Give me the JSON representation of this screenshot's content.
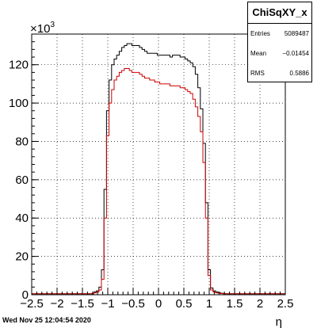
{
  "chart_data": {
    "type": "line",
    "title": "",
    "xlabel": "η",
    "ylabel": "",
    "y_multiplier": "×10",
    "y_multiplier_exponent": "3",
    "xlim": [
      -2.5,
      2.5
    ],
    "ylim": [
      0,
      136
    ],
    "x_ticks": [
      "−2.5",
      "−2",
      "−1.5",
      "−1",
      "−0.5",
      "0",
      "0.5",
      "1",
      "1.5",
      "2",
      "2.5"
    ],
    "y_ticks": [
      "0",
      "20",
      "40",
      "60",
      "80",
      "100",
      "120"
    ],
    "grid": true,
    "bin_width": 0.05,
    "series": [
      {
        "name": "",
        "color": "#000000",
        "style": "step",
        "x": [
          -1.25,
          -1.2,
          -1.15,
          -1.1,
          -1.05,
          -1.0,
          -0.95,
          -0.9,
          -0.85,
          -0.8,
          -0.75,
          -0.7,
          -0.65,
          -0.6,
          -0.55,
          -0.5,
          -0.45,
          -0.4,
          -0.35,
          -0.3,
          -0.25,
          -0.2,
          -0.15,
          -0.1,
          -0.05,
          0.0,
          0.05,
          0.1,
          0.15,
          0.2,
          0.25,
          0.3,
          0.35,
          0.4,
          0.45,
          0.5,
          0.55,
          0.6,
          0.65,
          0.7,
          0.75,
          0.8,
          0.85,
          0.9,
          0.95,
          1.0,
          1.05,
          1.1,
          1.15,
          1.2,
          1.25
        ],
        "y": [
          1.5,
          2.0,
          4.0,
          13,
          55,
          96,
          112,
          120,
          123,
          125,
          127,
          129,
          130,
          131,
          131,
          130,
          130,
          130,
          129,
          128,
          127,
          126,
          126,
          126,
          126,
          125,
          125,
          125,
          125,
          125,
          124,
          125,
          125,
          125,
          124,
          124,
          123,
          122,
          121,
          119,
          115,
          108,
          97,
          79,
          48,
          13,
          3.5,
          2.0,
          1.5,
          1.0,
          0.8
        ]
      },
      {
        "name": "",
        "color": "#cc0000",
        "style": "step",
        "x": [
          -1.25,
          -1.2,
          -1.15,
          -1.1,
          -1.05,
          -1.0,
          -0.95,
          -0.9,
          -0.85,
          -0.8,
          -0.75,
          -0.7,
          -0.65,
          -0.6,
          -0.55,
          -0.5,
          -0.45,
          -0.4,
          -0.35,
          -0.3,
          -0.25,
          -0.2,
          -0.15,
          -0.1,
          -0.05,
          0.0,
          0.05,
          0.1,
          0.15,
          0.2,
          0.25,
          0.3,
          0.35,
          0.4,
          0.45,
          0.5,
          0.55,
          0.6,
          0.65,
          0.7,
          0.75,
          0.8,
          0.85,
          0.9,
          0.95,
          1.0,
          1.05,
          1.1,
          1.15,
          1.2,
          1.25
        ],
        "y": [
          1.0,
          1.5,
          2.5,
          8,
          40,
          83,
          100,
          107,
          112,
          114,
          116,
          117,
          118,
          118,
          117,
          116,
          116,
          116,
          115,
          114,
          113,
          113,
          112,
          112,
          111,
          111,
          110,
          110,
          110,
          110,
          109,
          109,
          109,
          109,
          108,
          108,
          107,
          106,
          105,
          102,
          98,
          93,
          85,
          69,
          40,
          10,
          2.5,
          1.5,
          1.0,
          0.8,
          0.6
        ]
      }
    ]
  },
  "stats": {
    "title": "ChiSqXY_x",
    "rows": [
      {
        "key": "Entries",
        "value": "5089487"
      },
      {
        "key": "Mean",
        "value": "−0.01454"
      },
      {
        "key": "RMS",
        "value": "0.5886"
      }
    ]
  },
  "footer": {
    "timestamp": "Wed Nov 25 12:04:54 2020"
  }
}
